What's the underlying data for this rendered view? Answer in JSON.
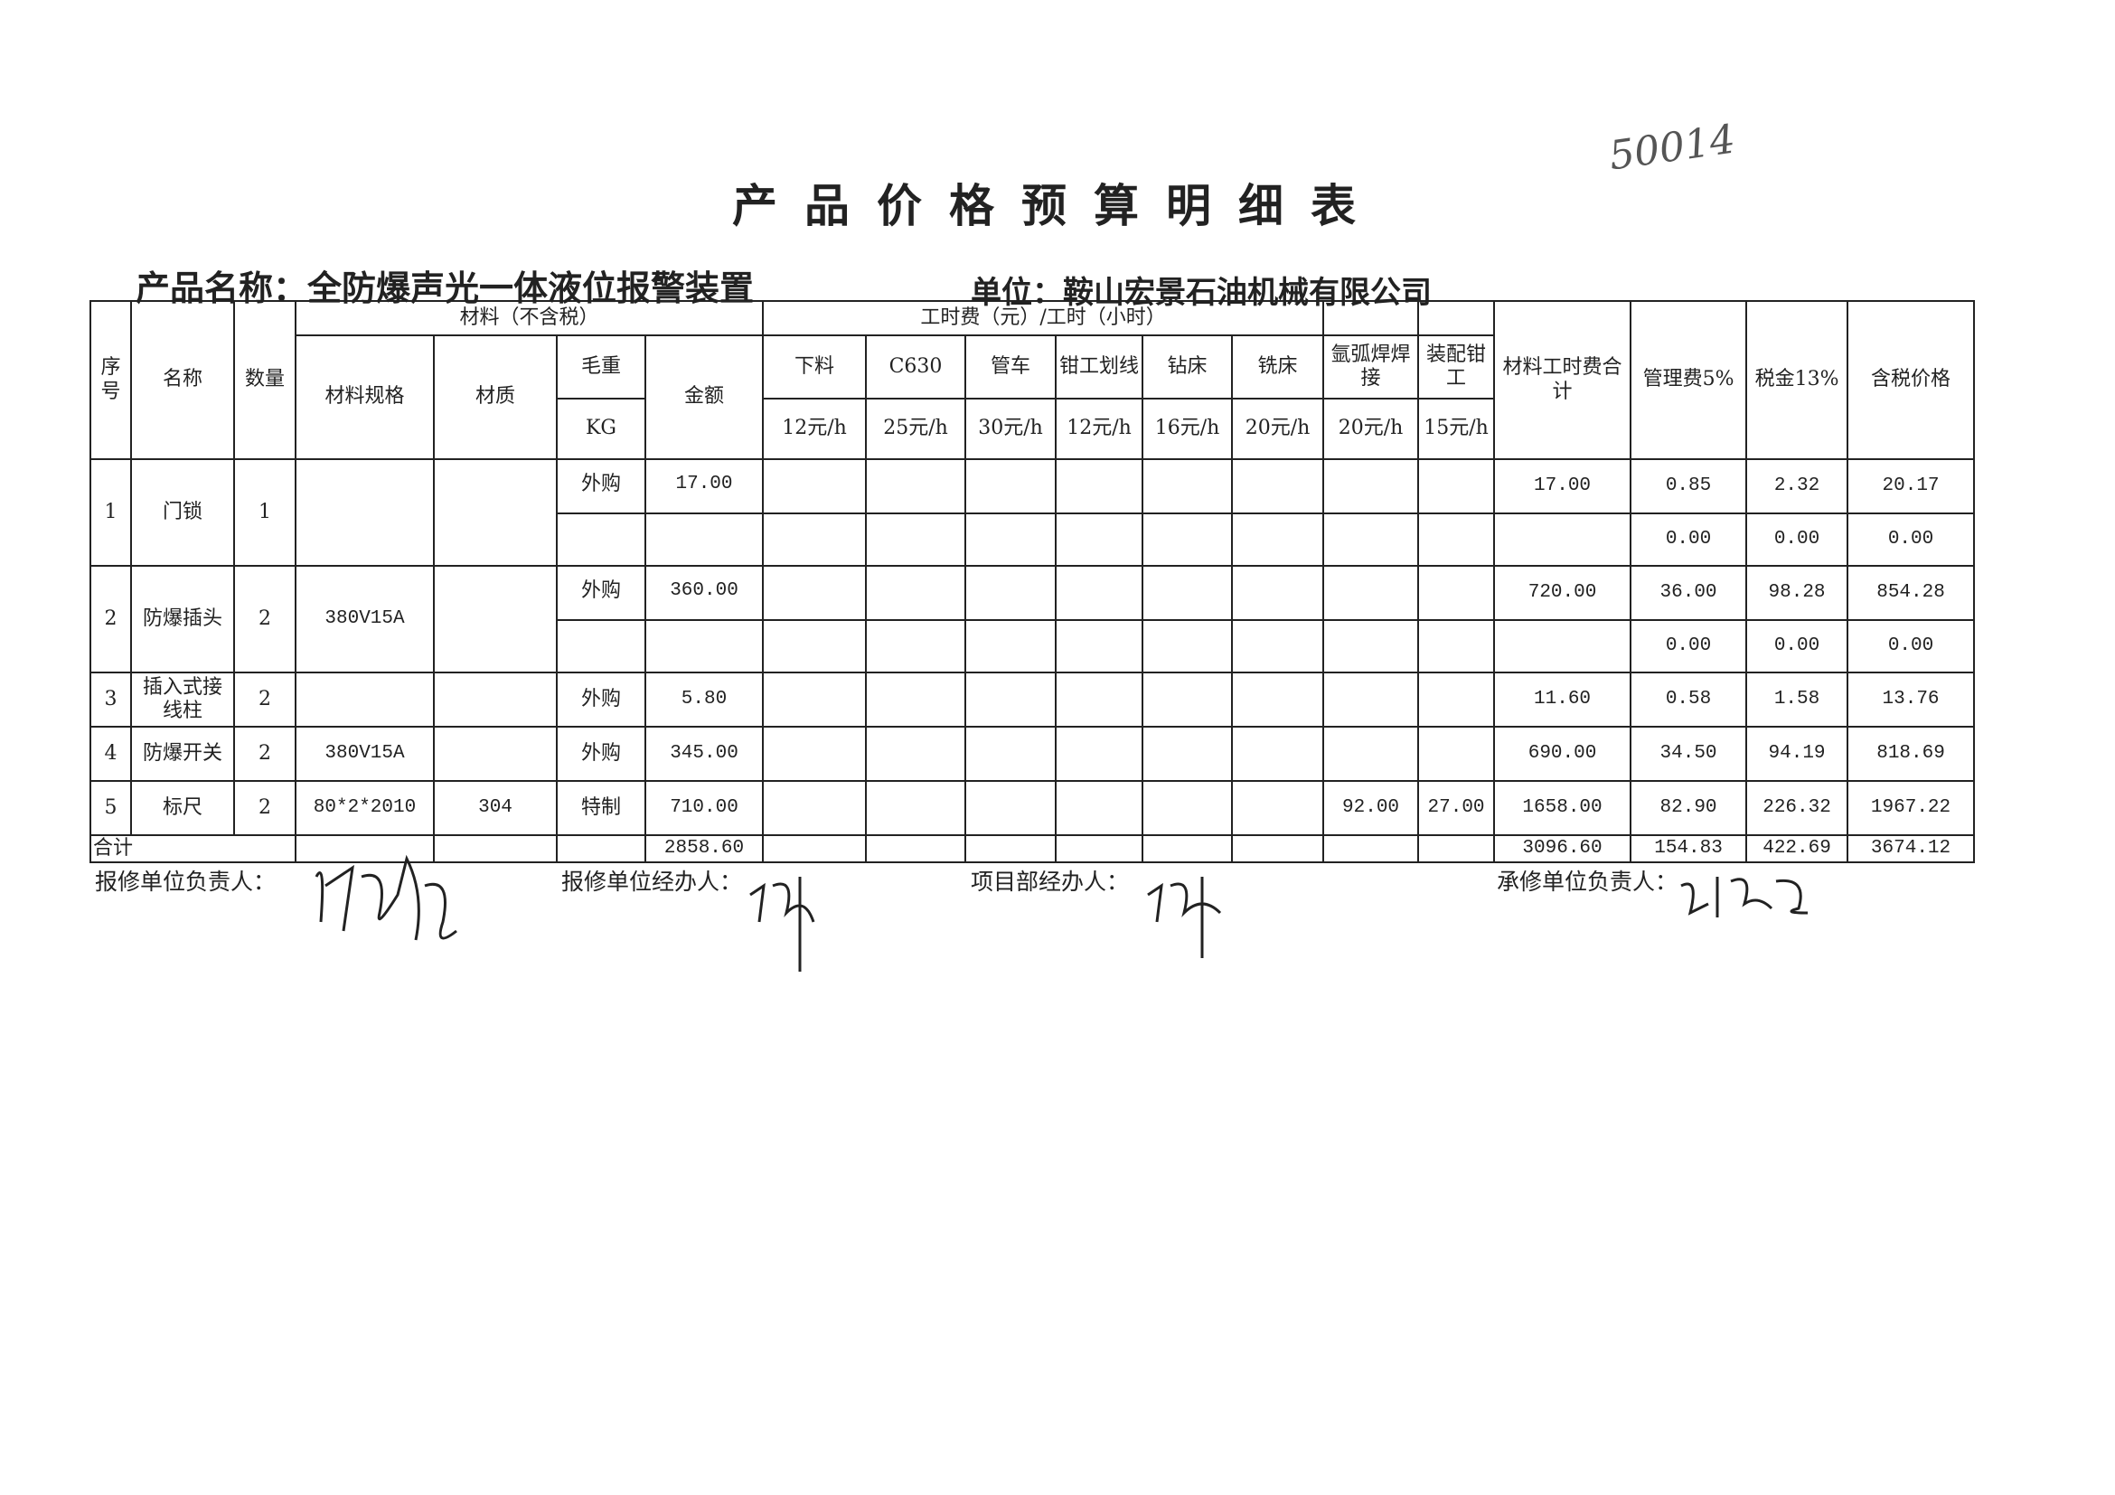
{
  "title": "产品价格预算明细表",
  "handwritten_number": "50014",
  "product_label": "产品名称：",
  "product_name": "全防爆声光一体液位报警装置",
  "unit_label": "单位：",
  "unit_name": "鞍山宏景石油机械有限公司",
  "headers": {
    "seq": "序号",
    "name": "名称",
    "qty": "数量",
    "material_group": "材料（不含税）",
    "spec": "材料规格",
    "material": "材质",
    "weight": "毛重",
    "weight_unit": "KG",
    "amount": "金额",
    "labor_group": "工时费（元）/工时（小时）",
    "labor": [
      {
        "name": "下料",
        "rate": "12元/h"
      },
      {
        "name": "C630",
        "rate": "25元/h"
      },
      {
        "name": "管车",
        "rate": "30元/h"
      },
      {
        "name": "钳工划线",
        "rate": "12元/h"
      },
      {
        "name": "钻床",
        "rate": "16元/h"
      },
      {
        "name": "铣床",
        "rate": "20元/h"
      },
      {
        "name": "氩弧焊焊接",
        "rate": "20元/h"
      },
      {
        "name": "装配钳工",
        "rate": "15元/h"
      }
    ],
    "total": "材料工时费合计",
    "mgmt": "管理费5%",
    "tax": "税金13%",
    "price": "含税价格"
  },
  "rows": [
    {
      "seq": "1",
      "name": "门锁",
      "qty": "1",
      "spec": "",
      "material": "",
      "source": "外购",
      "amount": "17.00",
      "argon": "",
      "assembly": "",
      "total": "17.00",
      "mgmt": "0.85",
      "tax": "2.32",
      "price": "20.17",
      "sub": {
        "mgmt": "0.00",
        "tax": "0.00",
        "price": "0.00"
      }
    },
    {
      "seq": "2",
      "name": "防爆插头",
      "qty": "2",
      "spec": "380V15A",
      "material": "",
      "source": "外购",
      "amount": "360.00",
      "argon": "",
      "assembly": "",
      "total": "720.00",
      "mgmt": "36.00",
      "tax": "98.28",
      "price": "854.28",
      "sub": {
        "mgmt": "0.00",
        "tax": "0.00",
        "price": "0.00"
      }
    },
    {
      "seq": "3",
      "name": "插入式接线柱",
      "qty": "2",
      "spec": "",
      "material": "",
      "source": "外购",
      "amount": "5.80",
      "argon": "",
      "assembly": "",
      "total": "11.60",
      "mgmt": "0.58",
      "tax": "1.58",
      "price": "13.76"
    },
    {
      "seq": "4",
      "name": "防爆开关",
      "qty": "2",
      "spec": "380V15A",
      "material": "",
      "source": "外购",
      "amount": "345.00",
      "argon": "",
      "assembly": "",
      "total": "690.00",
      "mgmt": "34.50",
      "tax": "94.19",
      "price": "818.69"
    },
    {
      "seq": "5",
      "name": "标尺",
      "qty": "2",
      "spec": "80*2*2010",
      "material": "304",
      "source": "特制",
      "amount": "710.00",
      "argon": "92.00",
      "assembly": "27.00",
      "total": "1658.00",
      "mgmt": "82.90",
      "tax": "226.32",
      "price": "1967.22"
    }
  ],
  "totals": {
    "label": "合计",
    "amount": "2858.60",
    "total": "3096.60",
    "mgmt": "154.83",
    "tax": "422.69",
    "price": "3674.12"
  },
  "footer": {
    "repair_head": "报修单位负责人：",
    "repair_agent": "报修单位经办人：",
    "project_agent": "项目部经办人：",
    "contractor_head": "承修单位负责人："
  }
}
